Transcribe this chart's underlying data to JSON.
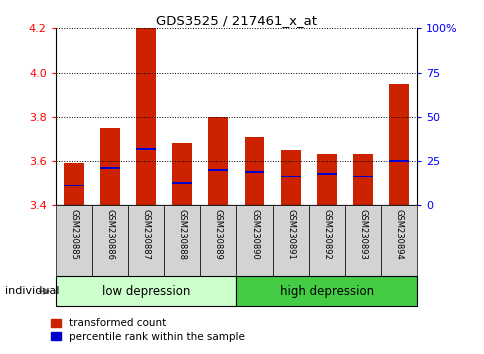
{
  "title": "GDS3525 / 217461_x_at",
  "samples": [
    "GSM230885",
    "GSM230886",
    "GSM230887",
    "GSM230888",
    "GSM230889",
    "GSM230890",
    "GSM230891",
    "GSM230892",
    "GSM230893",
    "GSM230894"
  ],
  "red_values": [
    3.59,
    3.75,
    4.2,
    3.68,
    3.8,
    3.71,
    3.65,
    3.63,
    3.63,
    3.95
  ],
  "blue_values": [
    3.49,
    3.57,
    3.655,
    3.5,
    3.56,
    3.55,
    3.53,
    3.54,
    3.53,
    3.6
  ],
  "ymin": 3.4,
  "ymax": 4.2,
  "yticks": [
    3.4,
    3.6,
    3.8,
    4.0,
    4.2
  ],
  "right_yticks": [
    0,
    25,
    50,
    75,
    100
  ],
  "right_ytick_labels": [
    "0",
    "25",
    "50",
    "75",
    "100%"
  ],
  "low_label": "low depression",
  "high_label": "high depression",
  "individual_label": "individual",
  "bar_color": "#cc2200",
  "blue_color": "#0000cc",
  "bar_width": 0.55,
  "low_bg": "#ccffcc",
  "high_bg": "#44cc44",
  "tick_bg": "#d3d3d3",
  "legend_red": "transformed count",
  "legend_blue": "percentile rank within the sample",
  "blue_bar_height": 0.008
}
